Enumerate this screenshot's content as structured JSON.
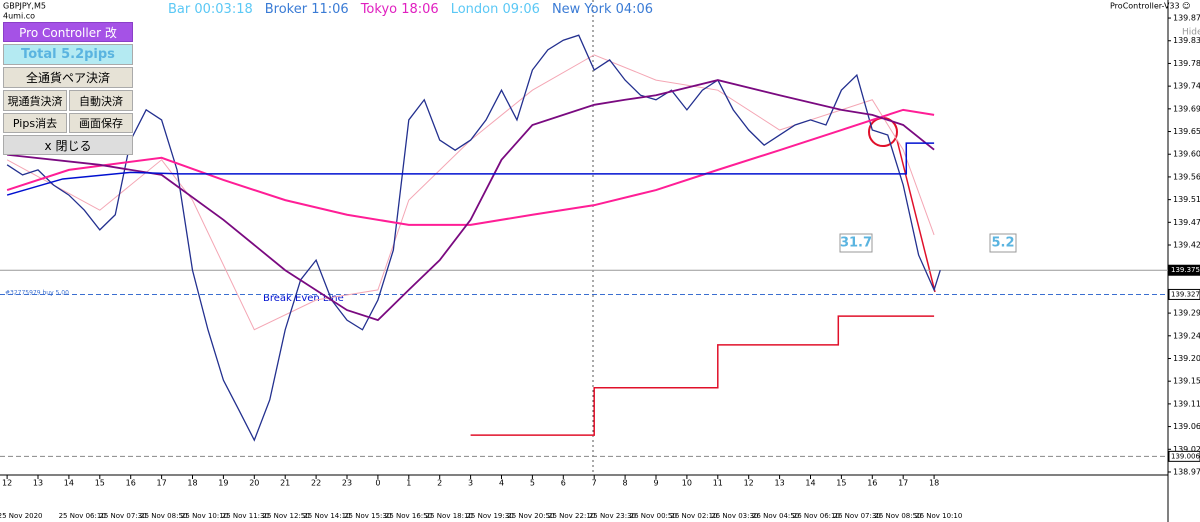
{
  "header": {
    "symbol": "GBPJPY,M5",
    "source": "4umi.co",
    "clocks": [
      {
        "text": "Bar 00:03:18",
        "color": "#5bc8f5"
      },
      {
        "text": "Broker 11:06",
        "color": "#3a7bd5"
      },
      {
        "text": "Tokyo 18:06",
        "color": "#e020c0"
      },
      {
        "text": "London 09:06",
        "color": "#5bc8f5"
      },
      {
        "text": "New York 04:06",
        "color": "#3a7bd5"
      }
    ],
    "indicator": "ProController-V33 ☺",
    "hide": "Hide"
  },
  "panel": {
    "title": "Pro Controller 改",
    "total": "Total   5.2pips",
    "all_close": "全通貨ペア決済",
    "pair_close": "現通貨決済",
    "auto_close": "自動決済",
    "clear_pips": "Pips消去",
    "save_screen": "画面保存",
    "close": "x 閉じる"
  },
  "chart_data": {
    "type": "line",
    "xlim": [
      -0.23,
      37.57
    ],
    "ylim": [
      138.969,
      139.887
    ],
    "yticks": [
      138.975,
      {
        "value": 139.02,
        "label": "139.020"
      },
      139.065,
      {
        "value": 139.11,
        "label": "139.110"
      },
      139.155,
      {
        "value": 139.2,
        "label": "139.200"
      },
      139.245,
      {
        "value": 139.29,
        "label": "139.290"
      },
      139.425,
      {
        "value": 139.47,
        "label": "139.470"
      },
      139.515,
      {
        "value": 139.56,
        "label": "139.560"
      },
      139.605,
      {
        "value": 139.65,
        "label": "139.650"
      },
      139.695,
      {
        "value": 139.74,
        "label": "139.740"
      },
      139.785,
      {
        "value": 139.83,
        "label": "139.830"
      },
      139.875
    ],
    "xticks": [
      {
        "value": 0,
        "label": "12"
      },
      {
        "value": 1,
        "label": "13"
      },
      {
        "value": 2,
        "label": "14"
      },
      {
        "value": 3,
        "label": "15"
      },
      {
        "value": 4,
        "label": "16"
      },
      {
        "value": 5,
        "label": "17"
      },
      {
        "value": 6,
        "label": "18"
      },
      {
        "value": 7,
        "label": "19"
      },
      {
        "value": 8,
        "label": "20"
      },
      {
        "value": 9,
        "label": "21"
      },
      {
        "value": 10,
        "label": "22"
      },
      {
        "value": 11,
        "label": "23"
      },
      {
        "value": 12,
        "label": "0"
      },
      {
        "value": 13,
        "label": "1"
      },
      {
        "value": 14,
        "label": "2"
      },
      {
        "value": 15,
        "label": "3"
      },
      {
        "value": 16,
        "label": "4"
      },
      {
        "value": 17,
        "label": "5"
      },
      {
        "value": 18,
        "label": "6"
      },
      {
        "value": 19,
        "label": "7"
      },
      {
        "value": 20,
        "label": "8"
      },
      {
        "value": 21,
        "label": "9"
      },
      {
        "value": 22,
        "label": "10"
      },
      {
        "value": 23,
        "label": "11"
      },
      {
        "value": 24,
        "label": "12"
      },
      {
        "value": 25,
        "label": "13"
      },
      {
        "value": 26,
        "label": "14"
      },
      {
        "value": 27,
        "label": "15"
      },
      {
        "value": 28,
        "label": "16"
      },
      {
        "value": 29,
        "label": "17"
      },
      {
        "value": 30,
        "label": "18"
      }
    ],
    "date_ticks": [
      {
        "value": 0.42,
        "label": "25 Nov 2020"
      },
      {
        "value": 2.43,
        "label": "25 Nov 06:10"
      },
      {
        "value": 3.75,
        "label": "25 Nov 07:30"
      },
      {
        "value": 5.07,
        "label": "25 Nov 08:50"
      },
      {
        "value": 6.39,
        "label": "25 Nov 10:10"
      },
      {
        "value": 7.71,
        "label": "25 Nov 11:30"
      },
      {
        "value": 9.03,
        "label": "25 Nov 12:50"
      },
      {
        "value": 10.35,
        "label": "25 Nov 14:10"
      },
      {
        "value": 11.67,
        "label": "25 Nov 15:30"
      },
      {
        "value": 12.99,
        "label": "25 Nov 16:50"
      },
      {
        "value": 14.31,
        "label": "25 Nov 18:10"
      },
      {
        "value": 15.63,
        "label": "25 Nov 19:30"
      },
      {
        "value": 16.95,
        "label": "25 Nov 20:50"
      },
      {
        "value": 18.27,
        "label": "25 Nov 22:10"
      },
      {
        "value": 19.59,
        "label": "25 Nov 23:30"
      },
      {
        "value": 20.91,
        "label": "26 Nov 00:50"
      },
      {
        "value": 22.23,
        "label": "26 Nov 02:10"
      },
      {
        "value": 23.55,
        "label": "26 Nov 03:30"
      },
      {
        "value": 24.87,
        "label": "26 Nov 04:50"
      },
      {
        "value": 26.19,
        "label": "26 Nov 06:10"
      },
      {
        "value": 27.51,
        "label": "26 Nov 07:30"
      },
      {
        "value": 28.83,
        "label": "26 Nov 08:50"
      },
      {
        "value": 30.15,
        "label": "26 Nov 10:10"
      }
    ],
    "series": [
      {
        "color": "#f4a6b4",
        "width": 1,
        "x": [
          0,
          3,
          5,
          6,
          8,
          10,
          12,
          13,
          15,
          17,
          19,
          21,
          23,
          25,
          27,
          28,
          29,
          30
        ],
        "values": [
          139.594,
          139.494,
          139.594,
          139.514,
          139.257,
          139.316,
          139.336,
          139.514,
          139.633,
          139.732,
          139.802,
          139.752,
          139.732,
          139.653,
          139.693,
          139.713,
          139.614,
          139.445
        ]
      },
      {
        "color": "#23308f",
        "width": 1.3,
        "x": [
          0,
          0.5,
          1,
          1.5,
          2,
          2.5,
          3,
          3.5,
          4,
          4.5,
          5,
          5.5,
          6,
          6.5,
          7,
          7.5,
          8,
          8.5,
          9,
          9.5,
          10,
          10.5,
          11,
          11.5,
          12,
          12.5,
          13,
          13.5,
          14,
          14.5,
          15,
          15.5,
          16,
          16.5,
          17,
          17.5,
          18,
          18.5,
          19,
          19.5,
          20,
          20.5,
          21,
          21.5,
          22,
          22.5,
          23,
          23.5,
          24,
          24.5,
          25,
          25.5,
          26,
          26.5,
          27,
          27.5,
          28,
          28.5,
          29,
          29.5,
          30,
          30.2
        ],
        "values": [
          139.584,
          139.564,
          139.574,
          139.544,
          139.524,
          139.494,
          139.455,
          139.485,
          139.633,
          139.693,
          139.673,
          139.574,
          139.375,
          139.257,
          139.157,
          139.098,
          139.038,
          139.118,
          139.257,
          139.356,
          139.395,
          139.316,
          139.276,
          139.257,
          139.316,
          139.415,
          139.673,
          139.713,
          139.633,
          139.613,
          139.633,
          139.673,
          139.732,
          139.673,
          139.772,
          139.812,
          139.831,
          139.841,
          139.772,
          139.792,
          139.752,
          139.722,
          139.713,
          139.732,
          139.693,
          139.732,
          139.752,
          139.693,
          139.653,
          139.623,
          139.643,
          139.663,
          139.673,
          139.663,
          139.732,
          139.762,
          139.653,
          139.643,
          139.544,
          139.405,
          139.336,
          139.375
        ]
      },
      {
        "color": "#ff1e96",
        "width": 2,
        "x": [
          0,
          2,
          5,
          7,
          9,
          11,
          13,
          15,
          17,
          19,
          21,
          23,
          25,
          27,
          28,
          29,
          30
        ],
        "values": [
          139.534,
          139.574,
          139.598,
          139.554,
          139.514,
          139.485,
          139.465,
          139.465,
          139.485,
          139.504,
          139.534,
          139.574,
          139.613,
          139.653,
          139.673,
          139.693,
          139.683
        ]
      },
      {
        "color": "#7a0a80",
        "width": 1.8,
        "x": [
          0,
          3,
          5,
          7,
          9,
          11,
          12,
          13,
          14,
          15,
          16,
          17,
          18,
          19,
          20,
          21,
          23,
          25,
          27,
          28,
          29,
          30
        ],
        "values": [
          139.604,
          139.584,
          139.564,
          139.475,
          139.375,
          139.296,
          139.276,
          139.336,
          139.395,
          139.475,
          139.594,
          139.663,
          139.683,
          139.703,
          139.713,
          139.722,
          139.752,
          139.722,
          139.693,
          139.683,
          139.663,
          139.614
        ]
      },
      {
        "color": "#0010d0",
        "width": 1.5,
        "x": [
          0,
          1.8,
          4,
          5.6,
          29.1,
          29.1,
          30
        ],
        "values": [
          139.524,
          139.556,
          139.569,
          139.566,
          139.566,
          139.627,
          139.627
        ]
      },
      {
        "color": "#e0102a",
        "width": 1.5,
        "x": [
          15,
          19,
          19,
          23,
          23,
          26.9,
          26.9,
          30
        ],
        "values": [
          139.048,
          139.048,
          139.142,
          139.142,
          139.227,
          139.227,
          139.284,
          139.284
        ]
      }
    ],
    "levels": [
      {
        "value": 139.375,
        "color": "#999999"
      },
      {
        "value": 139.327,
        "color": "#3b6fd0"
      },
      {
        "value": 139.006,
        "color": "#888888"
      }
    ],
    "annotations": {
      "order": "#32775979 buy 5.00",
      "breakeven": "Break Even Line",
      "pips_a": "31.7",
      "pips_b": "5.2"
    }
  }
}
